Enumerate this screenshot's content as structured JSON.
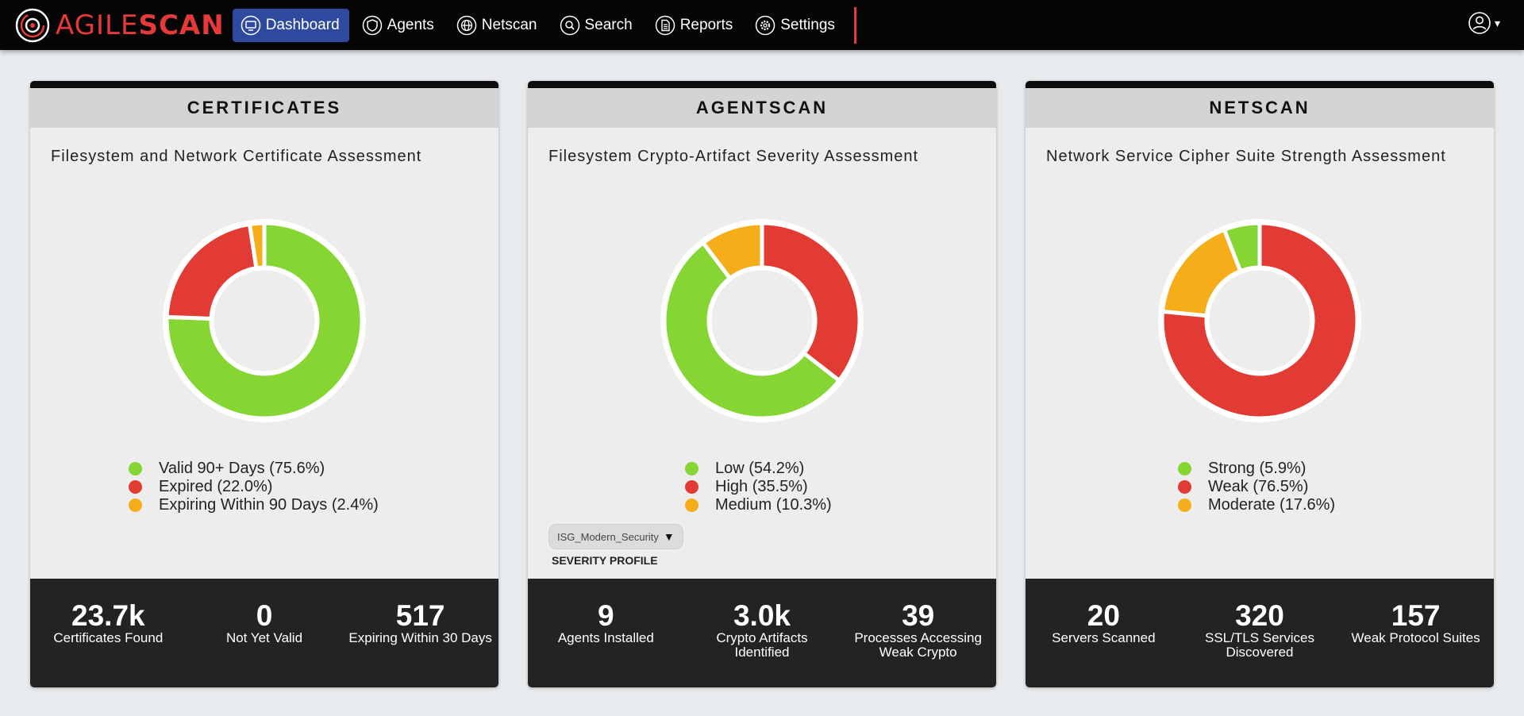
{
  "brand": {
    "name_part1": "AGILE",
    "name_part2": "SCAN"
  },
  "nav": {
    "items": [
      {
        "label": "Dashboard",
        "icon": "monitor-icon",
        "active": true
      },
      {
        "label": "Agents",
        "icon": "shield-icon",
        "active": false
      },
      {
        "label": "Netscan",
        "icon": "globe-icon",
        "active": false
      },
      {
        "label": "Search",
        "icon": "search-icon",
        "active": false
      },
      {
        "label": "Reports",
        "icon": "document-icon",
        "active": false
      },
      {
        "label": "Settings",
        "icon": "gear-icon",
        "active": false
      }
    ],
    "user_icon": "user-icon",
    "user_caret": "▾"
  },
  "colors": {
    "green": "#86d633",
    "red": "#e23b33",
    "orange": "#f6ad1a",
    "accent": "#2e4a9e"
  },
  "cards": [
    {
      "title": "CERTIFICATES",
      "subtitle": "Filesystem and Network Certificate Assessment",
      "legend": [
        {
          "label": "Valid 90+ Days (75.6%)",
          "color": "green"
        },
        {
          "label": "Expired (22.0%)",
          "color": "red"
        },
        {
          "label": "Expiring Within 90 Days (2.4%)",
          "color": "orange"
        }
      ],
      "stats": [
        {
          "value": "23.7k",
          "label": "Certificates Found"
        },
        {
          "value": "0",
          "label": "Not Yet Valid"
        },
        {
          "value": "517",
          "label": "Expiring Within 30 Days"
        }
      ]
    },
    {
      "title": "AGENTSCAN",
      "subtitle": "Filesystem Crypto-Artifact Severity Assessment",
      "legend": [
        {
          "label": "Low (54.2%)",
          "color": "green"
        },
        {
          "label": "High (35.5%)",
          "color": "red"
        },
        {
          "label": "Medium (10.3%)",
          "color": "orange"
        }
      ],
      "severity_profile": {
        "selected": "ISG_Modern_Security",
        "label": "SEVERITY PROFILE"
      },
      "stats": [
        {
          "value": "9",
          "label": "Agents Installed"
        },
        {
          "value": "3.0k",
          "label": "Crypto Artifacts Identified"
        },
        {
          "value": "39",
          "label": "Processes Accessing Weak Crypto"
        }
      ]
    },
    {
      "title": "NETSCAN",
      "subtitle": "Network Service Cipher Suite Strength Assessment",
      "legend": [
        {
          "label": "Strong (5.9%)",
          "color": "green"
        },
        {
          "label": "Weak (76.5%)",
          "color": "red"
        },
        {
          "label": "Moderate (17.6%)",
          "color": "orange"
        }
      ],
      "stats": [
        {
          "value": "20",
          "label": "Servers Scanned"
        },
        {
          "value": "320",
          "label": "SSL/TLS Services Discovered"
        },
        {
          "value": "157",
          "label": "Weak Protocol Suites"
        }
      ]
    }
  ],
  "chart_data": [
    {
      "type": "pie",
      "title": "Filesystem and Network Certificate Assessment",
      "categories": [
        "Valid 90+ Days",
        "Expired",
        "Expiring Within 90 Days"
      ],
      "values": [
        75.6,
        22.0,
        2.4
      ],
      "colors": [
        "#86d633",
        "#e23b33",
        "#f6ad1a"
      ],
      "donut": true,
      "start": "top",
      "direction": "clockwise"
    },
    {
      "type": "pie",
      "title": "Filesystem Crypto-Artifact Severity Assessment",
      "categories": [
        "High",
        "Low",
        "Medium"
      ],
      "values": [
        35.5,
        54.2,
        10.3
      ],
      "colors": [
        "#e23b33",
        "#86d633",
        "#f6ad1a"
      ],
      "donut": true,
      "start": "top",
      "direction": "clockwise"
    },
    {
      "type": "pie",
      "title": "Network Service Cipher Suite Strength Assessment",
      "categories": [
        "Weak",
        "Moderate",
        "Strong"
      ],
      "values": [
        76.5,
        17.6,
        5.9
      ],
      "colors": [
        "#e23b33",
        "#f6ad1a",
        "#86d633"
      ],
      "donut": true,
      "start": "top",
      "direction": "clockwise"
    }
  ]
}
